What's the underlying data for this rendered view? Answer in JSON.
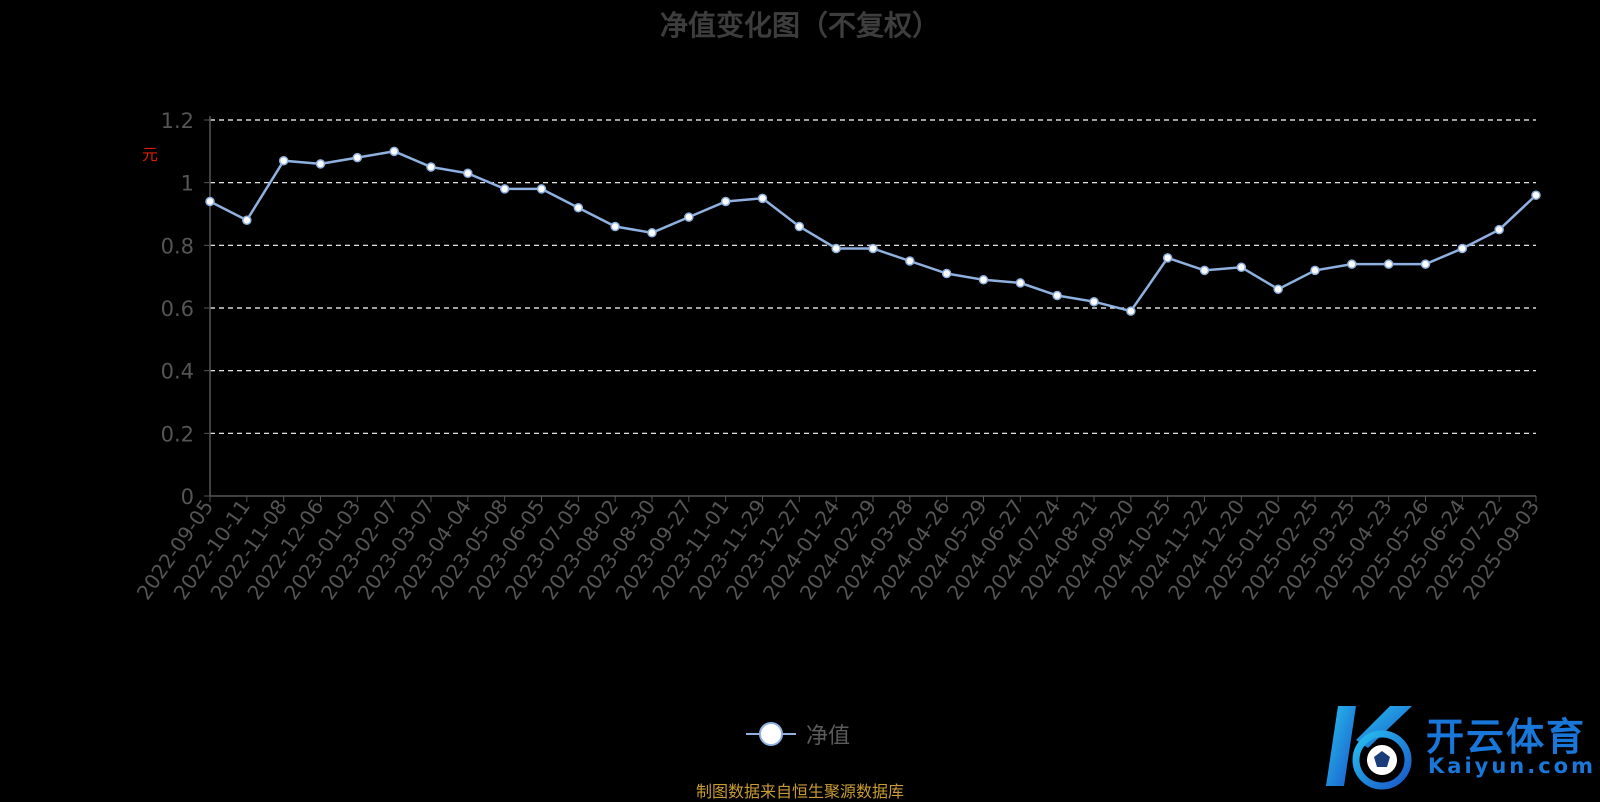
{
  "colors": {
    "background": "#000000",
    "line": "#8fb1e0",
    "grid": "#ffffff",
    "axis": "#555555",
    "tick_label": "#555555",
    "ylabel": "#d81e06",
    "title": "#3d3d3d",
    "source": "#c89b34",
    "watermark": "#1877d8"
  },
  "chart_data": {
    "type": "line",
    "title": "净值变化图（不复权）",
    "ylabel": "元",
    "xlabel": "",
    "ylim": [
      0,
      1.2
    ],
    "yticks": [
      "0",
      "0.2",
      "0.4",
      "0.6",
      "0.8",
      "1",
      "1.2"
    ],
    "grid": true,
    "legend_position": "bottom-center",
    "categories": [
      "2022-09-05",
      "2022-10-11",
      "2022-11-08",
      "2022-12-06",
      "2023-01-03",
      "2023-02-07",
      "2023-03-07",
      "2023-04-04",
      "2023-05-08",
      "2023-06-05",
      "2023-07-05",
      "2023-08-02",
      "2023-08-30",
      "2023-09-27",
      "2023-11-01",
      "2023-11-29",
      "2023-12-27",
      "2024-01-24",
      "2024-02-29",
      "2024-03-28",
      "2024-04-26",
      "2024-05-29",
      "2024-06-27",
      "2024-07-24",
      "2024-08-21",
      "2024-09-20",
      "2024-10-25",
      "2024-11-22",
      "2024-12-20",
      "2025-01-20",
      "2025-02-25",
      "2025-03-25",
      "2025-04-23",
      "2025-05-26",
      "2025-06-24",
      "2025-07-22",
      "2025-09-03"
    ],
    "series": [
      {
        "name": "净值",
        "values": [
          0.94,
          0.88,
          1.07,
          1.06,
          1.08,
          1.1,
          1.05,
          1.03,
          0.98,
          0.98,
          0.92,
          0.86,
          0.84,
          0.89,
          0.94,
          0.95,
          0.86,
          0.79,
          0.79,
          0.75,
          0.71,
          0.69,
          0.68,
          0.64,
          0.62,
          0.59,
          0.76,
          0.72,
          0.73,
          0.66,
          0.72,
          0.74,
          0.74,
          0.74,
          0.79,
          0.85,
          0.96
        ]
      }
    ]
  },
  "legend": {
    "label": "净值"
  },
  "source_note": "制图数据来自恒生聚源数据库",
  "watermark": {
    "text": "开云体育",
    "domain": "Kaiyun.com",
    "icon": "kaiyun-logo-icon"
  }
}
